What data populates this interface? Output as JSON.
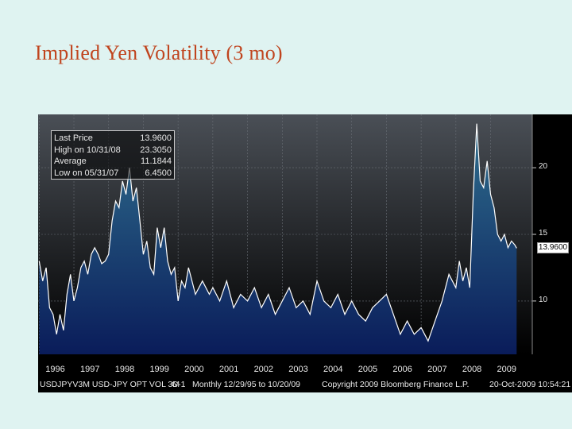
{
  "slide": {
    "title": "Implied Yen Volatility (3 mo)"
  },
  "chart_data": {
    "type": "area",
    "title": "Implied Yen Volatility (3 mo)",
    "x_range": [
      1996.0,
      2009.83
    ],
    "ylim": [
      6,
      24
    ],
    "yticks": [
      10,
      15,
      20
    ],
    "ytick_labels": [
      "10",
      "15",
      "20"
    ],
    "last_value_label": "13.9600",
    "year_labels": [
      "1996",
      "1997",
      "1998",
      "1999",
      "2000",
      "2001",
      "2002",
      "2003",
      "2004",
      "2005",
      "2006",
      "2007",
      "2008",
      "2009"
    ],
    "legend": [
      {
        "label": "Last Price",
        "value": "13.9600"
      },
      {
        "label": "High on 10/31/08",
        "value": "23.3050"
      },
      {
        "label": "Average",
        "value": "11.1844"
      },
      {
        "label": "Low on 05/31/07",
        "value": "6.4500"
      }
    ],
    "series": [
      {
        "name": "USDJPY 3M implied vol",
        "x": [
          1996.0,
          1996.1,
          1996.2,
          1996.3,
          1996.4,
          1996.5,
          1996.6,
          1996.7,
          1996.8,
          1996.9,
          1997.0,
          1997.1,
          1997.2,
          1997.3,
          1997.4,
          1997.5,
          1997.6,
          1997.7,
          1997.8,
          1997.9,
          1998.0,
          1998.1,
          1998.2,
          1998.3,
          1998.4,
          1998.5,
          1998.6,
          1998.7,
          1998.8,
          1998.9,
          1999.0,
          1999.1,
          1999.2,
          1999.3,
          1999.4,
          1999.5,
          1999.6,
          1999.7,
          1999.8,
          1999.9,
          2000.0,
          2000.1,
          2000.2,
          2000.3,
          2000.5,
          2000.7,
          2000.9,
          2001.0,
          2001.2,
          2001.4,
          2001.6,
          2001.8,
          2002.0,
          2002.2,
          2002.4,
          2002.6,
          2002.8,
          2003.0,
          2003.2,
          2003.4,
          2003.6,
          2003.8,
          2004.0,
          2004.2,
          2004.4,
          2004.6,
          2004.8,
          2005.0,
          2005.2,
          2005.4,
          2005.6,
          2005.8,
          2006.0,
          2006.2,
          2006.4,
          2006.6,
          2006.8,
          2007.0,
          2007.2,
          2007.4,
          2007.6,
          2007.8,
          2008.0,
          2008.1,
          2008.2,
          2008.3,
          2008.4,
          2008.5,
          2008.6,
          2008.7,
          2008.8,
          2008.9,
          2009.0,
          2009.1,
          2009.2,
          2009.3,
          2009.4,
          2009.5,
          2009.6,
          2009.7,
          2009.75
        ],
        "values": [
          13.0,
          11.5,
          12.5,
          9.5,
          9.0,
          7.5,
          9.0,
          7.8,
          10.5,
          12.0,
          10.0,
          11.0,
          12.5,
          13.0,
          12.0,
          13.5,
          14.0,
          13.5,
          12.8,
          13.0,
          13.5,
          16.0,
          17.5,
          17.0,
          19.0,
          18.0,
          20.0,
          17.5,
          18.5,
          16.0,
          13.5,
          14.5,
          12.5,
          12.0,
          15.5,
          14.0,
          15.5,
          13.0,
          12.0,
          12.5,
          10.0,
          11.5,
          11.0,
          12.5,
          10.5,
          11.5,
          10.5,
          11.0,
          10.0,
          11.5,
          9.5,
          10.5,
          10.0,
          11.0,
          9.5,
          10.5,
          9.0,
          10.0,
          11.0,
          9.5,
          10.0,
          9.0,
          11.5,
          10.0,
          9.5,
          10.5,
          9.0,
          10.0,
          9.0,
          8.5,
          9.5,
          10.0,
          10.5,
          9.0,
          7.5,
          8.5,
          7.5,
          8.0,
          7.0,
          8.5,
          10.0,
          12.0,
          11.0,
          13.0,
          11.5,
          12.5,
          11.0,
          18.0,
          23.3,
          19.0,
          18.5,
          20.5,
          18.0,
          17.0,
          15.0,
          14.5,
          15.0,
          14.0,
          14.5,
          14.2,
          13.96
        ]
      }
    ]
  },
  "footer": {
    "ticker": "USDJPYV3M USD-JPY OPT VOL 3M",
    "page": "G-1",
    "range": "Monthly 12/29/95 to 10/20/09",
    "copyright": "Copyright 2009 Bloomberg Finance L.P.",
    "timestamp": "20-Oct-2009 10:54:21"
  },
  "colors": {
    "title": "#c0441e",
    "fill_top": "#2f6f8e",
    "fill_bottom": "#0a1c5a",
    "line": "#ffffff",
    "bg_top": "#4a4f56",
    "bg_bottom": "#000000"
  }
}
